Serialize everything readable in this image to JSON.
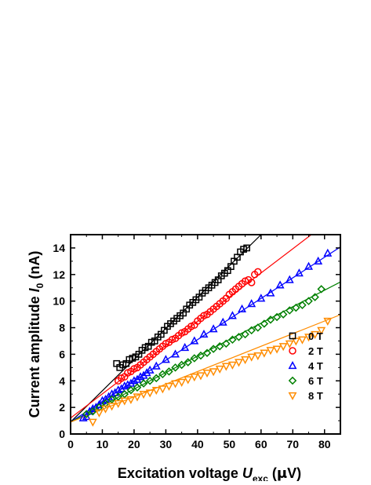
{
  "chart_data": {
    "type": "scatter",
    "xlabel": {
      "main": "Excitation voltage ",
      "var": "U",
      "sub": "exc",
      "unit_open": " (",
      "unit_mu": "μ",
      "unit_rest": "V)"
    },
    "ylabel": {
      "main": "Current amplitude ",
      "var": "I",
      "sub": "0",
      "unit": " (nA)"
    },
    "xlim": [
      0,
      85
    ],
    "ylim": [
      0,
      15
    ],
    "xticks": [
      0,
      10,
      20,
      30,
      40,
      50,
      60,
      70,
      80
    ],
    "yticks": [
      0,
      2,
      4,
      6,
      8,
      10,
      12,
      14
    ],
    "grid": false,
    "legend_position": "bottom-right",
    "series": [
      {
        "name": "0 T",
        "marker": "square",
        "color": "#000000",
        "fit": {
          "slope": 0.235,
          "intercept": 0.9
        },
        "x": [
          14.5,
          15.5,
          16.5,
          17.5,
          18.5,
          19.5,
          20.5,
          21.5,
          22.5,
          23.5,
          24.5,
          25.5,
          26.5,
          27.5,
          28.5,
          29.5,
          30.5,
          31.5,
          32.5,
          33.5,
          34.5,
          35.5,
          36.5,
          37.5,
          38.5,
          39.5,
          40.5,
          41.5,
          42.5,
          43.5,
          44.5,
          45.5,
          46.5,
          47.5,
          48.5,
          49.5,
          50.5,
          51.5,
          52.5,
          53.5,
          54.5,
          55.5
        ],
        "y": [
          5.3,
          5.0,
          5.2,
          5.3,
          5.6,
          5.7,
          5.8,
          6.0,
          6.3,
          6.5,
          6.6,
          6.9,
          7.0,
          7.3,
          7.5,
          7.8,
          8.1,
          8.3,
          8.5,
          8.7,
          8.9,
          9.1,
          9.4,
          9.7,
          9.9,
          10.1,
          10.3,
          10.6,
          10.8,
          11.0,
          11.2,
          11.4,
          11.6,
          11.9,
          12.1,
          12.3,
          12.6,
          13.0,
          13.3,
          13.7,
          13.9,
          14.0
        ]
      },
      {
        "name": "2 T",
        "marker": "circle",
        "color": "#ff0000",
        "fit": {
          "slope": 0.182,
          "intercept": 1.2
        },
        "x": [
          15,
          16,
          17,
          18,
          19,
          20,
          21,
          22,
          23,
          24,
          25,
          26,
          27,
          28,
          29,
          30,
          31,
          32,
          33,
          34,
          35,
          36,
          37,
          38,
          39,
          40,
          41,
          42,
          43,
          44,
          45,
          46,
          47,
          48,
          49,
          50,
          51,
          52,
          53,
          54,
          55,
          56,
          57,
          58,
          59
        ],
        "y": [
          4.0,
          4.2,
          4.3,
          4.6,
          4.7,
          4.9,
          5.0,
          5.2,
          5.4,
          5.6,
          5.8,
          6.0,
          6.2,
          6.4,
          6.6,
          6.8,
          6.9,
          7.1,
          7.2,
          7.4,
          7.6,
          7.7,
          7.9,
          8.1,
          8.2,
          8.5,
          8.7,
          8.9,
          9.0,
          9.2,
          9.4,
          9.6,
          9.8,
          10.0,
          10.2,
          10.5,
          10.7,
          10.9,
          11.1,
          11.3,
          11.5,
          11.6,
          11.4,
          12.0,
          12.2
        ]
      },
      {
        "name": "4 T",
        "marker": "triangle-up",
        "color": "#0000ff",
        "fit": {
          "slope": 0.155,
          "intercept": 0.9
        },
        "x": [
          4,
          5,
          6,
          7,
          8,
          9,
          10,
          11,
          12,
          13,
          14,
          15,
          16,
          17,
          18,
          19,
          20,
          21,
          22,
          23,
          24,
          25,
          27,
          30,
          33,
          36,
          39,
          42,
          45,
          48,
          51,
          54,
          57,
          60,
          63,
          66,
          69,
          72,
          75,
          78,
          81
        ],
        "y": [
          1.2,
          1.3,
          1.7,
          1.9,
          2.0,
          2.2,
          2.5,
          2.6,
          2.8,
          3.0,
          3.1,
          3.3,
          3.4,
          3.6,
          3.7,
          3.8,
          4.0,
          4.1,
          4.3,
          4.4,
          4.6,
          4.8,
          5.1,
          5.6,
          6.0,
          6.5,
          7.0,
          7.5,
          7.9,
          8.4,
          8.9,
          9.4,
          9.8,
          10.2,
          10.6,
          11.2,
          11.6,
          12.1,
          12.6,
          13.0,
          13.6
        ]
      },
      {
        "name": "6 T",
        "marker": "diamond",
        "color": "#008000",
        "fit": {
          "slope": 0.124,
          "intercept": 0.9
        },
        "x": [
          5,
          7,
          9,
          11,
          13,
          15,
          17,
          19,
          21,
          23,
          25,
          27,
          29,
          31,
          33,
          35,
          37,
          39,
          41,
          43,
          45,
          47,
          49,
          51,
          53,
          55,
          57,
          59,
          61,
          63,
          65,
          67,
          69,
          71,
          73,
          75,
          77,
          79
        ],
        "y": [
          1.5,
          1.7,
          2.0,
          2.3,
          2.6,
          2.8,
          3.0,
          3.3,
          3.5,
          3.8,
          4.0,
          4.2,
          4.5,
          4.7,
          5.0,
          5.2,
          5.4,
          5.7,
          5.9,
          6.1,
          6.4,
          6.6,
          6.8,
          7.1,
          7.3,
          7.5,
          7.8,
          8.0,
          8.3,
          8.6,
          8.8,
          9.0,
          9.3,
          9.5,
          9.7,
          10.0,
          10.3,
          10.9
        ]
      },
      {
        "name": "8 T",
        "marker": "triangle-down",
        "color": "#ff8c00",
        "fit": {
          "slope": 0.095,
          "intercept": 0.9
        },
        "x": [
          7,
          9,
          11,
          13,
          15,
          17,
          19,
          21,
          23,
          25,
          27,
          29,
          31,
          33,
          35,
          37,
          39,
          41,
          43,
          45,
          47,
          49,
          51,
          53,
          55,
          57,
          59,
          61,
          63,
          65,
          67,
          69,
          71,
          73,
          75,
          77,
          79,
          81
        ],
        "y": [
          0.9,
          1.6,
          1.9,
          2.1,
          2.3,
          2.5,
          2.6,
          2.8,
          3.0,
          3.1,
          3.3,
          3.4,
          3.6,
          3.8,
          3.9,
          4.1,
          4.3,
          4.4,
          4.6,
          4.7,
          4.9,
          5.1,
          5.2,
          5.4,
          5.6,
          5.8,
          5.9,
          6.1,
          6.3,
          6.4,
          6.6,
          6.8,
          7.0,
          7.1,
          7.3,
          7.5,
          7.8,
          8.5
        ]
      }
    ]
  }
}
